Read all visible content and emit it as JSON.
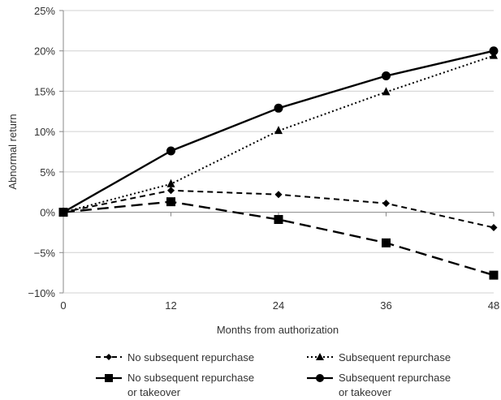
{
  "chart_data": {
    "type": "line",
    "xlabel": "Months from authorization",
    "ylabel": "Abnormal return",
    "x": [
      0,
      12,
      24,
      36,
      48
    ],
    "xlim": [
      0,
      48
    ],
    "ylim": [
      -10,
      25
    ],
    "xticks": [
      "0",
      "12",
      "24",
      "36",
      "48"
    ],
    "yticks": [
      {
        "value": 25,
        "label": "25%"
      },
      {
        "value": 20,
        "label": "20%"
      },
      {
        "value": 15,
        "label": "15%"
      },
      {
        "value": 10,
        "label": "10%"
      },
      {
        "value": 5,
        "label": "5%"
      },
      {
        "value": 0,
        "label": "0%"
      },
      {
        "value": -5,
        "label": "−5%"
      },
      {
        "value": -10,
        "label": "−10%"
      }
    ],
    "grid": "horizontal",
    "legend_position": "bottom",
    "series": [
      {
        "name": "No subsequent repurchase",
        "values": [
          0,
          2.7,
          2.2,
          1.1,
          -1.9
        ],
        "marker": "diamond",
        "line": "short-dash",
        "color": "#000000"
      },
      {
        "name": "Subsequent repurchase",
        "values": [
          0,
          3.5,
          10.1,
          14.9,
          19.4
        ],
        "marker": "triangle",
        "line": "dotted",
        "color": "#000000"
      },
      {
        "name": "No subsequent repurchase or takeover",
        "values": [
          0,
          1.3,
          -0.9,
          -3.8,
          -7.8
        ],
        "marker": "square",
        "line": "long-dash",
        "color": "#000000"
      },
      {
        "name": "Subsequent repurchase or takeover",
        "values": [
          0,
          7.6,
          12.9,
          16.9,
          20.0
        ],
        "marker": "circle",
        "line": "solid",
        "color": "#000000"
      }
    ]
  },
  "legend": [
    {
      "line1": "No subsequent repurchase",
      "line2": ""
    },
    {
      "line1": "Subsequent repurchase",
      "line2": ""
    },
    {
      "line1": "No subsequent repurchase",
      "line2": "or takeover"
    },
    {
      "line1": "Subsequent repurchase",
      "line2": "or takeover"
    }
  ]
}
